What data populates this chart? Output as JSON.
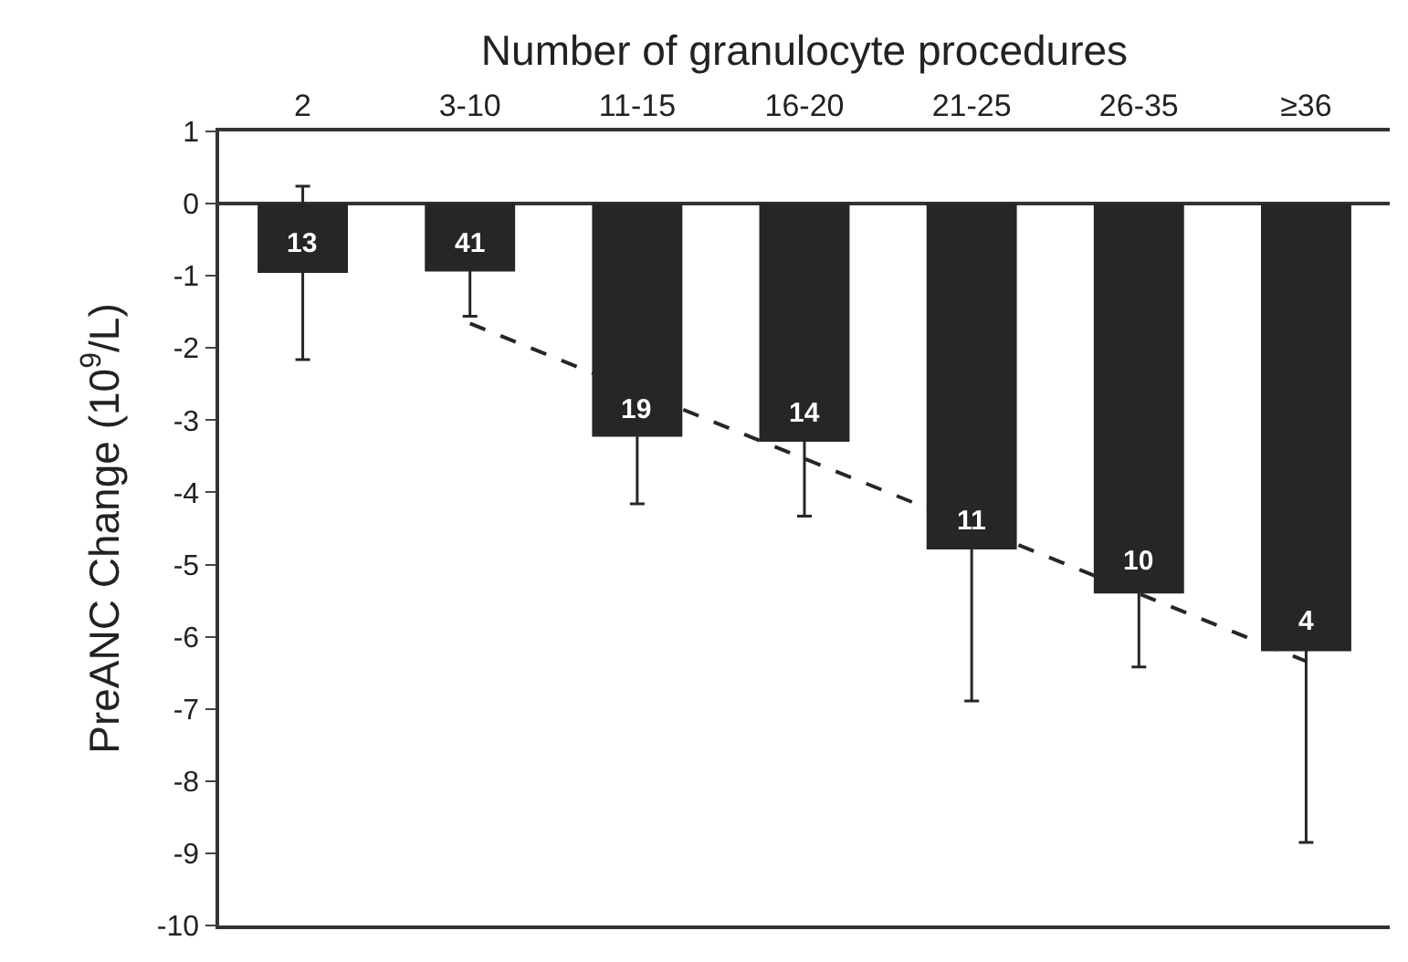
{
  "chart_data": {
    "type": "bar",
    "xlabel": "Number of granulocyte procedures",
    "ylabel": "PreANC Change (10$^{9}$/L)",
    "categories": [
      "2",
      "3-10",
      "11-15",
      "16-20",
      "21-25",
      "26-35",
      "≥36"
    ],
    "series": [
      {
        "color": "#262626",
        "values": [
          -0.96,
          -0.94,
          -3.23,
          -3.3,
          -4.79,
          -5.4,
          -6.2
        ],
        "errors": [
          1.2,
          0.62,
          0.93,
          1.03,
          2.1,
          1.02,
          2.65
        ]
      },
      {
        "type": "line",
        "color": "#262626",
        "x": [
          "3-10",
          "≥36"
        ],
        "values": [
          -1.66,
          -6.34
        ],
        "line_style": "dashed",
        "marker": "none"
      }
    ],
    "ylim": [
      -10,
      1
    ],
    "yticks": [
      1,
      0,
      -1,
      -2,
      -3,
      -4,
      -5,
      -6,
      -7,
      -8,
      -9,
      -10
    ],
    "annotations": [
      {
        "text": "13",
        "x": "2",
        "y": -0.55
      },
      {
        "text": "41",
        "x": "3-10",
        "y": -0.55
      },
      {
        "text": "19",
        "x": "11-15",
        "y": -2.85
      },
      {
        "text": "14",
        "x": "16-20",
        "y": -2.9
      },
      {
        "text": "11",
        "x": "21-25",
        "y": -4.4
      },
      {
        "text": "10",
        "x": "26-35",
        "y": -4.95
      },
      {
        "text": "4",
        "x": "≥36",
        "y": -5.8
      }
    ]
  }
}
